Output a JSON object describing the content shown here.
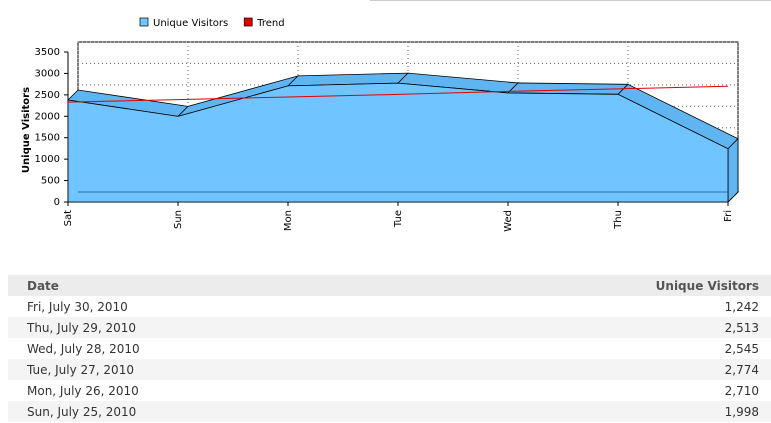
{
  "chart_data": {
    "type": "area",
    "y_label": "Unique Visitors",
    "categories": [
      "Sat",
      "Sun",
      "Mon",
      "Tue",
      "Wed",
      "Thu",
      "Fri"
    ],
    "series": [
      {
        "name": "Unique Visitors",
        "color": "#70c4ff",
        "values": [
          2380,
          1998,
          2710,
          2774,
          2545,
          2513,
          1242
        ]
      },
      {
        "name": "Trend",
        "color": "#e00000",
        "values": [
          2330,
          2390,
          2450,
          2510,
          2580,
          2640,
          2700
        ]
      }
    ],
    "ylim": [
      0,
      3500
    ],
    "yticks": [
      0,
      500,
      1000,
      1500,
      2000,
      2500,
      3000,
      3500
    ],
    "grid": true,
    "legend": "top"
  },
  "table": {
    "columns": [
      "Date",
      "Unique Visitors"
    ],
    "rows": [
      [
        "Fri, July 30, 2010",
        "1,242"
      ],
      [
        "Thu, July 29, 2010",
        "2,513"
      ],
      [
        "Wed, July 28, 2010",
        "2,545"
      ],
      [
        "Tue, July 27, 2010",
        "2,774"
      ],
      [
        "Mon, July 26, 2010",
        "2,710"
      ],
      [
        "Sun, July 25, 2010",
        "1,998"
      ]
    ]
  }
}
